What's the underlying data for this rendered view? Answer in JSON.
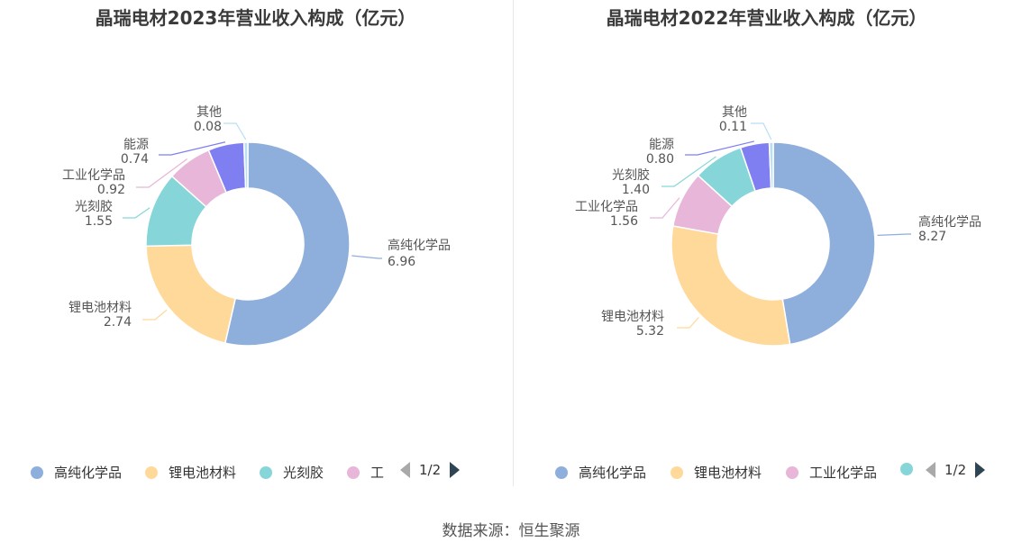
{
  "source": "数据来源：恒生聚源",
  "chart_data": [
    {
      "type": "pie",
      "title": "晶瑞电材2023年营业收入构成（亿元）",
      "slices": [
        {
          "name": "高纯化学品",
          "value": 6.96,
          "value_label": "6.96",
          "color": "#8eaedc"
        },
        {
          "name": "锂电池材料",
          "value": 2.74,
          "value_label": "2.74",
          "color": "#ffd99a"
        },
        {
          "name": "光刻胶",
          "value": 1.55,
          "value_label": "1.55",
          "color": "#86d6d9"
        },
        {
          "name": "工业化学品",
          "value": 0.92,
          "value_label": "0.92",
          "color": "#e7b6d8"
        },
        {
          "name": "能源",
          "value": 0.74,
          "value_label": "0.74",
          "color": "#7f7ff2"
        },
        {
          "name": "其他",
          "value": 0.08,
          "value_label": "0.08",
          "color": "#b8dff2"
        }
      ],
      "legend": {
        "items": [
          {
            "name": "高纯化学品",
            "color": "#8eaedc"
          },
          {
            "name": "锂电池材料",
            "color": "#ffd99a"
          },
          {
            "name": "光刻胶",
            "color": "#86d6d9"
          },
          {
            "name": "工",
            "color": "#e7b6d8"
          }
        ],
        "page": "1/2"
      }
    },
    {
      "type": "pie",
      "title": "晶瑞电材2022年营业收入构成（亿元）",
      "slices": [
        {
          "name": "高纯化学品",
          "value": 8.27,
          "value_label": "8.27",
          "color": "#8eaedc"
        },
        {
          "name": "锂电池材料",
          "value": 5.32,
          "value_label": "5.32",
          "color": "#ffd99a"
        },
        {
          "name": "工业化学品",
          "value": 1.56,
          "value_label": "1.56",
          "color": "#e7b6d8"
        },
        {
          "name": "光刻胶",
          "value": 1.4,
          "value_label": "1.40",
          "color": "#86d6d9"
        },
        {
          "name": "能源",
          "value": 0.8,
          "value_label": "0.80",
          "color": "#7f7ff2"
        },
        {
          "name": "其他",
          "value": 0.11,
          "value_label": "0.11",
          "color": "#b8dff2"
        }
      ],
      "legend": {
        "items": [
          {
            "name": "高纯化学品",
            "color": "#8eaedc"
          },
          {
            "name": "锂电池材料",
            "color": "#ffd99a"
          },
          {
            "name": "工业化学品",
            "color": "#e7b6d8"
          },
          {
            "name": "",
            "color": "#86d6d9"
          }
        ],
        "page": "1/2"
      }
    }
  ]
}
